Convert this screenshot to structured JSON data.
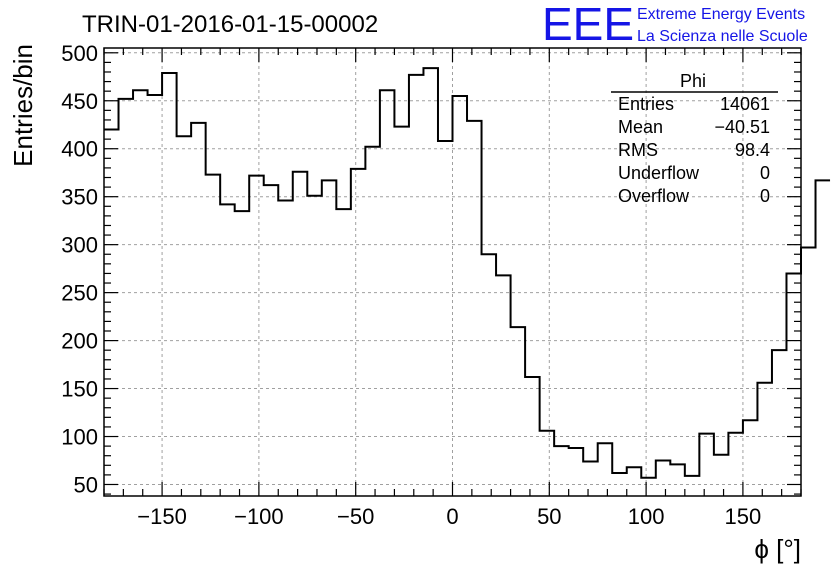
{
  "logo": {
    "mark": "EEE",
    "line1": "Extreme Energy Events",
    "line2": "La Scienza nelle Scuole",
    "color": "#1515e6"
  },
  "stats": {
    "name": "Phi",
    "rows": [
      {
        "label": "Entries",
        "value": "14061"
      },
      {
        "label": "Mean",
        "value": "−40.51"
      },
      {
        "label": "RMS",
        "value": "98.4"
      },
      {
        "label": "Underflow",
        "value": "0"
      },
      {
        "label": "Overflow",
        "value": "0"
      }
    ]
  },
  "chart_data": {
    "type": "histogram",
    "title": "TRIN-01-2016-01-15-00002",
    "xlabel": "ϕ [°]",
    "ylabel": "Entries/bin",
    "xlim": [
      -180,
      180
    ],
    "ylim": [
      38,
      505
    ],
    "grid": true,
    "x_ticks": [
      -150,
      -100,
      -50,
      0,
      50,
      100,
      150
    ],
    "x_tick_labels": [
      "−150",
      "−100",
      "−50",
      "0",
      "50",
      "100",
      "150"
    ],
    "y_ticks": [
      50,
      100,
      150,
      200,
      250,
      300,
      350,
      400,
      450,
      500
    ],
    "y_tick_labels": [
      "50",
      "100",
      "150",
      "200",
      "250",
      "300",
      "350",
      "400",
      "450",
      "500"
    ],
    "bin_width": 7.5,
    "bin_start": -180,
    "values": [
      420,
      452,
      461,
      456,
      479,
      413,
      427,
      373,
      342,
      335,
      372,
      362,
      346,
      376,
      351,
      367,
      337,
      379,
      402,
      461,
      423,
      477,
      484,
      408,
      455,
      429,
      290,
      268,
      214,
      162,
      106,
      90,
      88,
      74,
      93,
      62,
      68,
      57,
      75,
      71,
      59,
      103,
      81,
      104,
      117,
      156,
      190,
      270,
      297,
      367
    ]
  }
}
